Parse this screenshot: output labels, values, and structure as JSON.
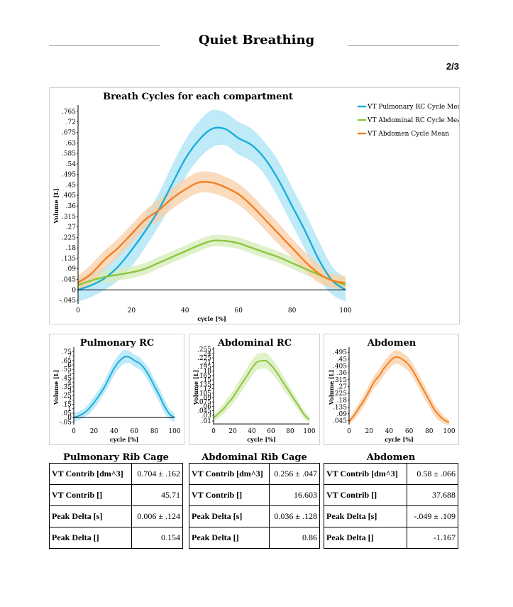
{
  "page": {
    "title": "Quiet Breathing",
    "page_number": "2/3"
  },
  "colors": {
    "pulmonary": "#1aaedb",
    "abdominal_rc": "#8cc63f",
    "abdomen": "#f57f20",
    "pulmonary_band": "#a9e3f5",
    "abdominal_rc_band": "#d6ecb8",
    "abdomen_band": "#f9cfa8"
  },
  "chart_data": [
    {
      "id": "main",
      "type": "line",
      "title": "Breath Cycles for each compartment",
      "xlabel": "cycle [%]",
      "ylabel": "Volume [L]",
      "xlim": [
        0,
        100
      ],
      "ylim": [
        -0.06,
        0.78
      ],
      "x_ticks": [
        0,
        20,
        40,
        60,
        80,
        100
      ],
      "y_ticks": [
        -0.045,
        0,
        0.045,
        0.09,
        0.135,
        0.18,
        0.225,
        0.27,
        0.315,
        0.36,
        0.405,
        0.45,
        0.495,
        0.54,
        0.585,
        0.63,
        0.675,
        0.72,
        0.765
      ],
      "y_tick_labels": [
        "-.045",
        "0",
        ".045",
        ".09",
        ".135",
        ".18",
        ".225",
        ".27",
        ".315",
        ".36",
        ".405",
        ".45",
        ".495",
        ".54",
        ".585",
        ".63",
        ".675",
        ".72",
        ".765"
      ],
      "legend_position": "top-right",
      "x": [
        0,
        5,
        10,
        15,
        20,
        25,
        30,
        35,
        40,
        45,
        50,
        55,
        60,
        65,
        70,
        75,
        80,
        85,
        90,
        95,
        100
      ],
      "series": [
        {
          "name": "VT Pulmonary RC Cycle Mean",
          "color_key": "pulmonary",
          "values": [
            0.0,
            0.02,
            0.05,
            0.1,
            0.17,
            0.25,
            0.34,
            0.45,
            0.56,
            0.64,
            0.69,
            0.69,
            0.65,
            0.62,
            0.56,
            0.47,
            0.36,
            0.25,
            0.13,
            0.04,
            0.0
          ],
          "band": [
            0.05,
            0.05,
            0.05,
            0.06,
            0.07,
            0.07,
            0.07,
            0.08,
            0.08,
            0.08,
            0.08,
            0.07,
            0.07,
            0.07,
            0.07,
            0.08,
            0.08,
            0.08,
            0.08,
            0.06,
            0.05
          ]
        },
        {
          "name": "VT Abdominal RC Cycle Mean",
          "color_key": "abdominal_rc",
          "values": [
            0.02,
            0.04,
            0.055,
            0.065,
            0.075,
            0.09,
            0.115,
            0.14,
            0.165,
            0.19,
            0.21,
            0.21,
            0.2,
            0.18,
            0.16,
            0.14,
            0.115,
            0.09,
            0.065,
            0.04,
            0.02
          ],
          "band": [
            0.02,
            0.02,
            0.025,
            0.025,
            0.025,
            0.025,
            0.025,
            0.025,
            0.025,
            0.025,
            0.025,
            0.025,
            0.025,
            0.025,
            0.025,
            0.025,
            0.025,
            0.025,
            0.025,
            0.025,
            0.02
          ]
        },
        {
          "name": "VT Abdomen Cycle Mean",
          "color_key": "abdomen",
          "values": [
            0.03,
            0.07,
            0.13,
            0.18,
            0.24,
            0.3,
            0.34,
            0.39,
            0.43,
            0.46,
            0.46,
            0.44,
            0.41,
            0.36,
            0.3,
            0.24,
            0.18,
            0.12,
            0.07,
            0.04,
            0.03
          ],
          "band": [
            0.03,
            0.04,
            0.04,
            0.04,
            0.04,
            0.04,
            0.045,
            0.045,
            0.045,
            0.045,
            0.045,
            0.045,
            0.045,
            0.045,
            0.045,
            0.045,
            0.04,
            0.04,
            0.04,
            0.03,
            0.03
          ]
        }
      ]
    },
    {
      "id": "pulmonary",
      "type": "line",
      "title": "Pulmonary RC",
      "xlabel": "cycle [%]",
      "ylabel": "Volume [L]",
      "xlim": [
        0,
        100
      ],
      "ylim": [
        -0.08,
        0.77
      ],
      "x_ticks": [
        0,
        20,
        40,
        60,
        80,
        100
      ],
      "y_ticks": [
        -0.05,
        0,
        0.05,
        0.1,
        0.15,
        0.2,
        0.25,
        0.3,
        0.35,
        0.4,
        0.45,
        0.5,
        0.55,
        0.6,
        0.65,
        0.7,
        0.75
      ],
      "y_tick_labels": [
        "-.05",
        "0",
        ".05",
        ".1",
        ".15",
        ".2",
        ".25",
        ".3",
        ".35",
        ".4",
        ".45",
        ".5",
        ".55",
        ".6",
        ".65",
        ".7",
        ".75"
      ],
      "x": [
        0,
        5,
        10,
        15,
        20,
        25,
        30,
        35,
        40,
        45,
        50,
        55,
        60,
        65,
        70,
        75,
        80,
        85,
        90,
        95,
        100
      ],
      "series": [
        {
          "color_key": "pulmonary",
          "values": [
            0.0,
            0.02,
            0.05,
            0.1,
            0.17,
            0.25,
            0.34,
            0.45,
            0.56,
            0.64,
            0.69,
            0.69,
            0.65,
            0.62,
            0.56,
            0.47,
            0.36,
            0.25,
            0.13,
            0.04,
            0.0
          ],
          "band": [
            0.05,
            0.05,
            0.05,
            0.06,
            0.07,
            0.07,
            0.07,
            0.08,
            0.08,
            0.08,
            0.08,
            0.07,
            0.07,
            0.07,
            0.07,
            0.08,
            0.08,
            0.08,
            0.08,
            0.06,
            0.05
          ]
        }
      ]
    },
    {
      "id": "abdominal_rc",
      "type": "line",
      "title": "Abdominal RC",
      "xlabel": "cycle [%]",
      "ylabel": "Volume [L]",
      "xlim": [
        0,
        100
      ],
      "ylim": [
        -0.002,
        0.252
      ],
      "x_ticks": [
        0,
        20,
        40,
        60,
        80,
        100
      ],
      "y_ticks": [
        0.01,
        0.03,
        0.045,
        0.06,
        0.075,
        0.09,
        0.105,
        0.12,
        0.135,
        0.15,
        0.165,
        0.18,
        0.195,
        0.21,
        0.225,
        0.24,
        0.255
      ],
      "y_tick_labels": [
        ".01",
        ".03",
        ".045",
        ".06",
        ".075",
        ".09",
        ".105",
        ".12",
        ".135",
        ".15",
        ".165",
        ".18",
        ".195",
        ".21",
        ".225",
        ".24",
        ".255"
      ],
      "x": [
        0,
        5,
        10,
        15,
        20,
        25,
        30,
        35,
        40,
        45,
        50,
        55,
        60,
        65,
        70,
        75,
        80,
        85,
        90,
        95,
        100
      ],
      "series": [
        {
          "color_key": "abdominal_rc",
          "values": [
            0.02,
            0.035,
            0.05,
            0.07,
            0.09,
            0.115,
            0.14,
            0.165,
            0.19,
            0.21,
            0.215,
            0.215,
            0.2,
            0.18,
            0.155,
            0.13,
            0.105,
            0.08,
            0.055,
            0.03,
            0.015
          ],
          "band": [
            0.012,
            0.015,
            0.018,
            0.02,
            0.022,
            0.024,
            0.025,
            0.026,
            0.027,
            0.027,
            0.027,
            0.027,
            0.026,
            0.025,
            0.024,
            0.022,
            0.02,
            0.018,
            0.016,
            0.014,
            0.012
          ]
        }
      ]
    },
    {
      "id": "abdomen",
      "type": "line",
      "title": "Abdomen",
      "xlabel": "cycle [%]",
      "ylabel": "Volume [L]",
      "xlim": [
        0,
        100
      ],
      "ylim": [
        0.02,
        0.51
      ],
      "x_ticks": [
        0,
        20,
        40,
        60,
        80,
        100
      ],
      "y_ticks": [
        0.045,
        0.09,
        0.135,
        0.18,
        0.225,
        0.27,
        0.315,
        0.36,
        0.405,
        0.45,
        0.495
      ],
      "y_tick_labels": [
        ".045",
        ".09",
        ".135",
        ".18",
        ".225",
        ".27",
        ".315",
        ".36",
        ".405",
        ".45",
        ".495"
      ],
      "x": [
        0,
        5,
        10,
        15,
        20,
        25,
        30,
        35,
        40,
        45,
        50,
        55,
        60,
        65,
        70,
        75,
        80,
        85,
        90,
        95,
        100
      ],
      "series": [
        {
          "color_key": "abdomen",
          "values": [
            0.04,
            0.08,
            0.13,
            0.18,
            0.24,
            0.3,
            0.34,
            0.39,
            0.43,
            0.46,
            0.46,
            0.44,
            0.41,
            0.36,
            0.3,
            0.24,
            0.18,
            0.12,
            0.08,
            0.05,
            0.035
          ],
          "band": [
            0.02,
            0.03,
            0.035,
            0.04,
            0.04,
            0.04,
            0.045,
            0.045,
            0.045,
            0.045,
            0.045,
            0.045,
            0.045,
            0.045,
            0.045,
            0.045,
            0.04,
            0.04,
            0.035,
            0.025,
            0.02
          ]
        }
      ]
    }
  ],
  "tables": [
    {
      "title": "Pulmonary Rib Cage",
      "rows": [
        {
          "label": "VT Contrib [dm^3]",
          "value": "0.704 ± .162"
        },
        {
          "label": "VT Contrib []",
          "value": "45.71"
        },
        {
          "label": "Peak Delta [s]",
          "value": "0.006 ± .124"
        },
        {
          "label": "Peak Delta []",
          "value": "0.154"
        }
      ]
    },
    {
      "title": "Abdominal Rib Cage",
      "rows": [
        {
          "label": "VT Contrib [dm^3]",
          "value": "0.256 ± .047"
        },
        {
          "label": "VT Contrib []",
          "value": "16.603"
        },
        {
          "label": "Peak Delta [s]",
          "value": "0.036 ± .128"
        },
        {
          "label": "Peak Delta []",
          "value": "0.86"
        }
      ]
    },
    {
      "title": "Abdomen",
      "rows": [
        {
          "label": "VT Contrib [dm^3]",
          "value": "0.58 ± .066"
        },
        {
          "label": "VT Contrib []",
          "value": "37.688"
        },
        {
          "label": "Peak Delta [s]",
          "value": "-.049 ± .109"
        },
        {
          "label": "Peak Delta []",
          "value": "-1.167"
        }
      ]
    }
  ]
}
